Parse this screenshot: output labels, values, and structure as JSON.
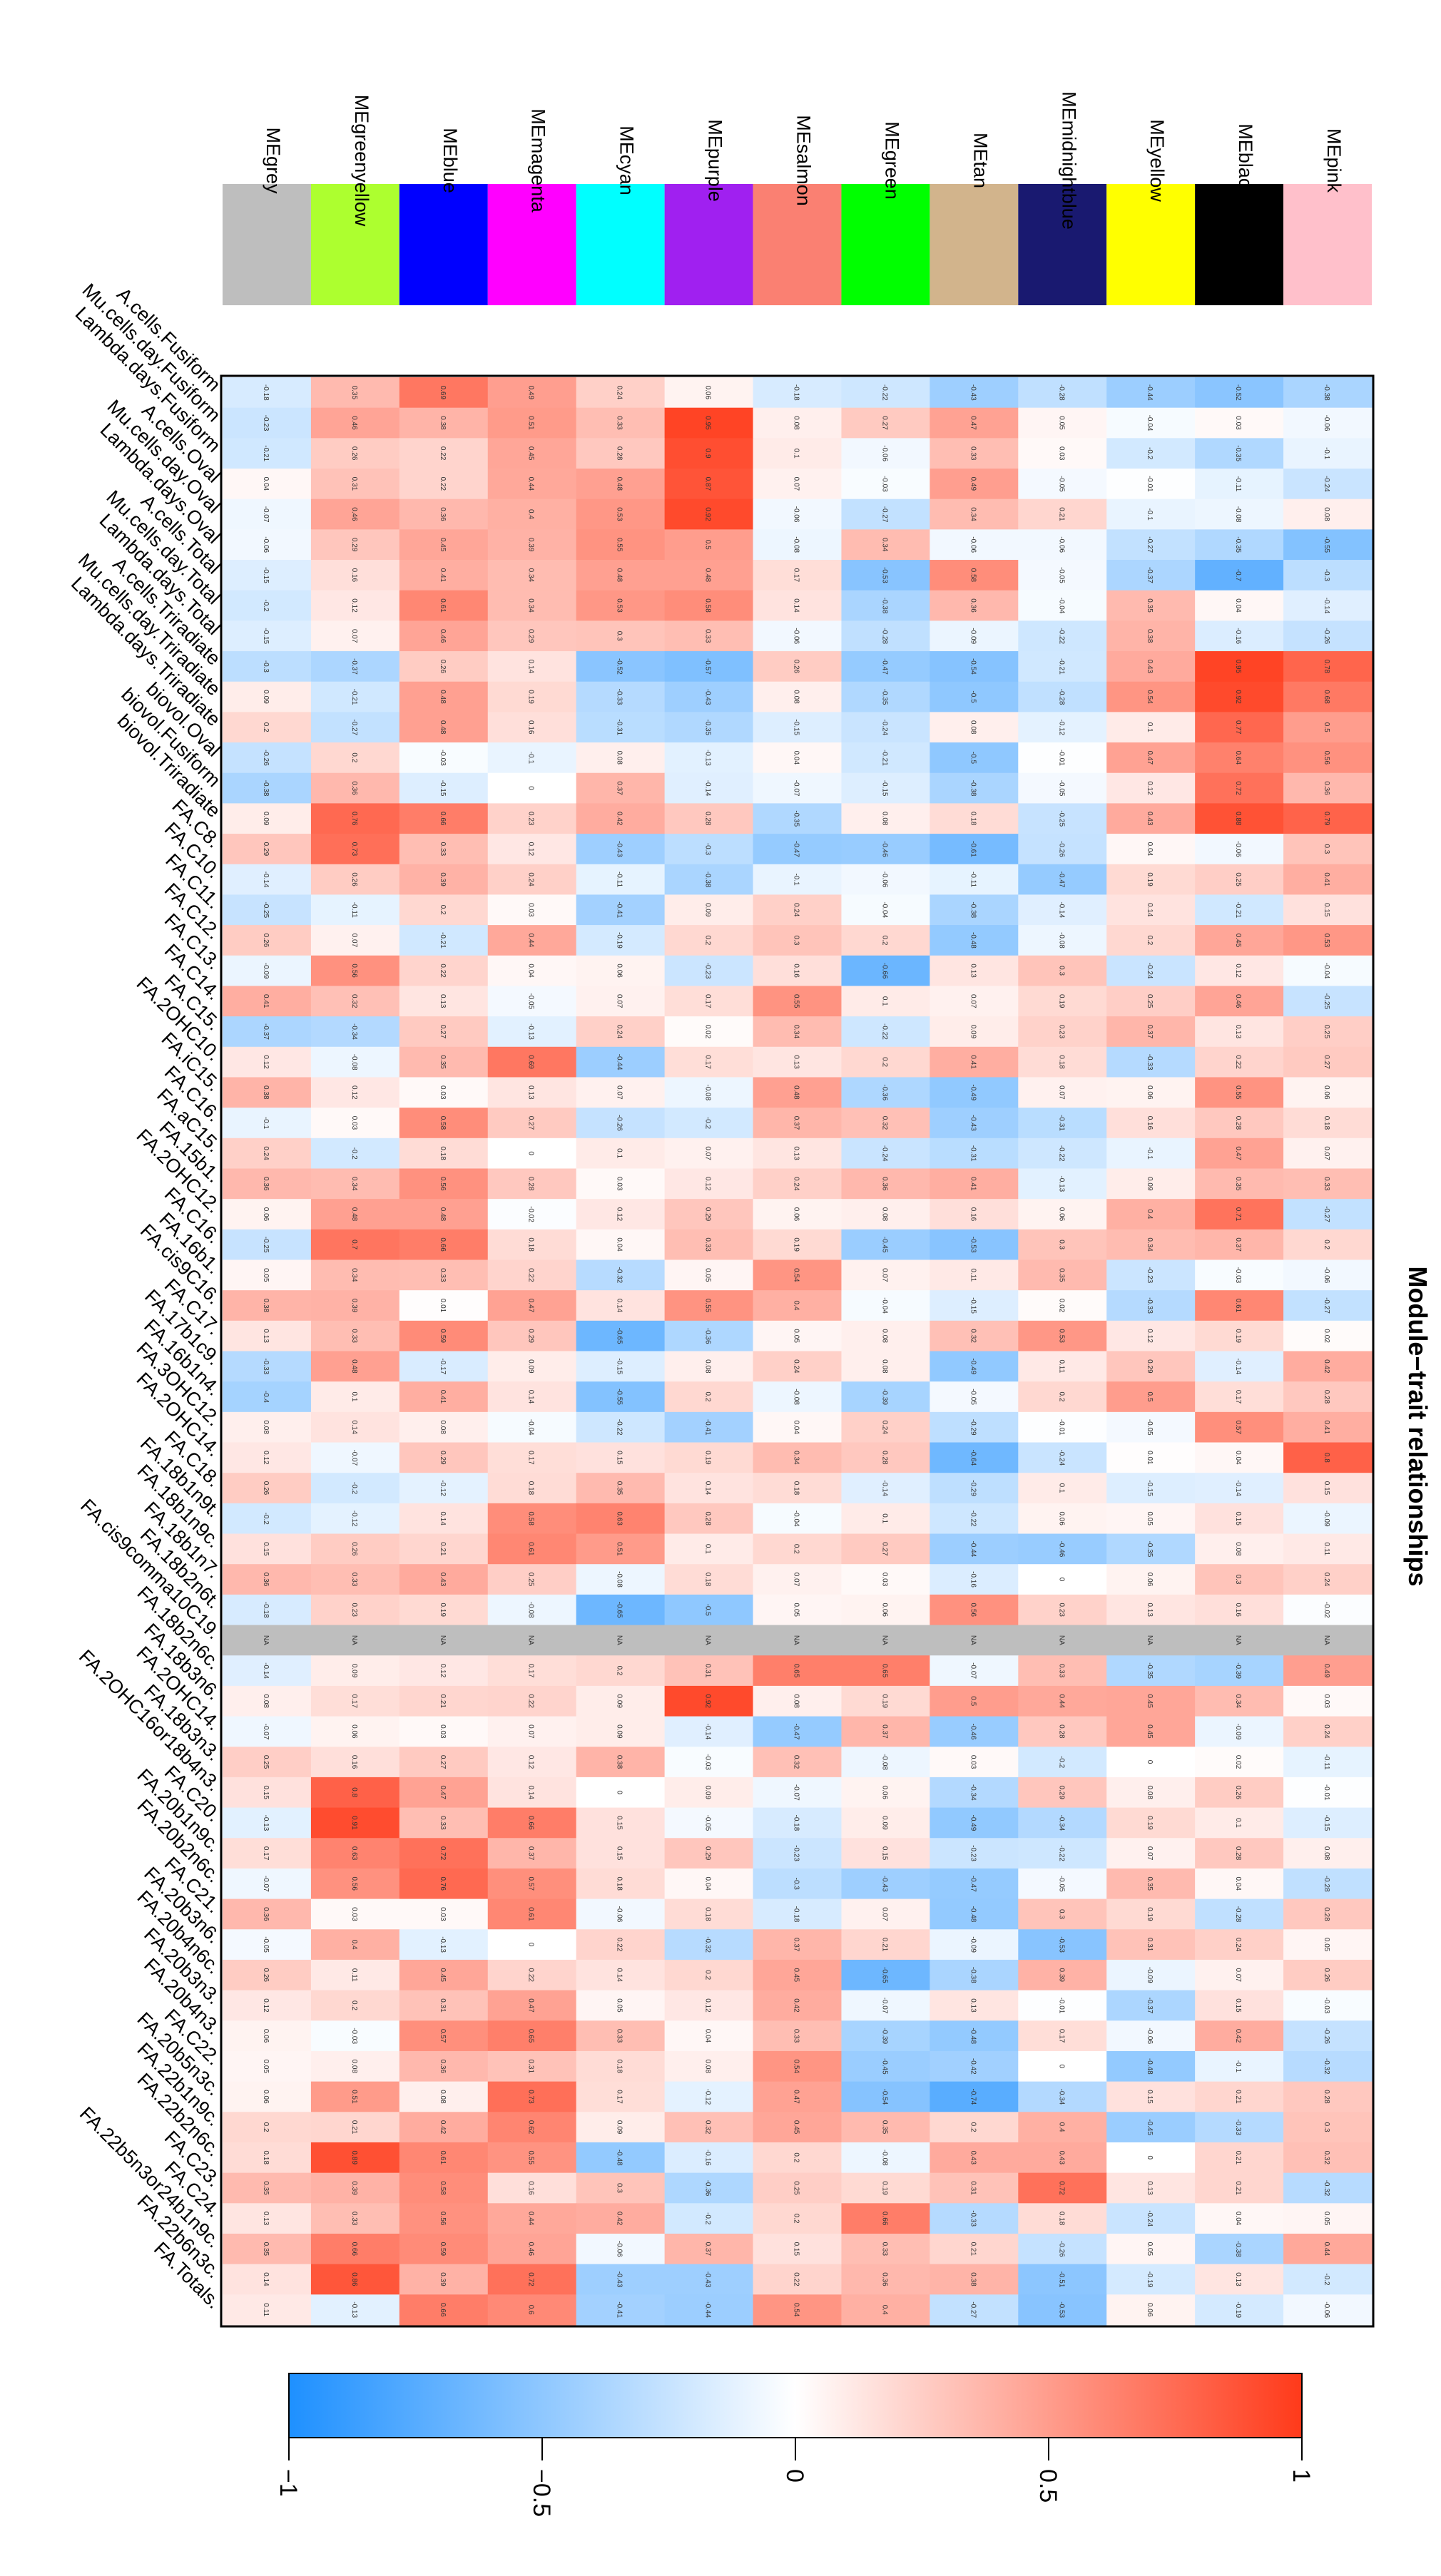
{
  "chart_data": {
    "type": "heatmap",
    "title": "Module−trait relationships",
    "orientation": "rotated 90 degrees clockwise",
    "modules": [
      {
        "name": "MEgrey",
        "color": "#bebebe"
      },
      {
        "name": "MEgreenyellow",
        "color": "#adff2f"
      },
      {
        "name": "MEblue",
        "color": "#0000ff"
      },
      {
        "name": "MEmagenta",
        "color": "#ff00ff"
      },
      {
        "name": "MEcyan",
        "color": "#00ffff"
      },
      {
        "name": "MEpurple",
        "color": "#a020f0"
      },
      {
        "name": "MEsalmon",
        "color": "#fa8072"
      },
      {
        "name": "MEgreen",
        "color": "#00ff00"
      },
      {
        "name": "MEtan",
        "color": "#d2b48c"
      },
      {
        "name": "MEmidnightblue",
        "color": "#191970"
      },
      {
        "name": "MEyellow",
        "color": "#ffff00"
      },
      {
        "name": "MEblack",
        "color": "#000000"
      },
      {
        "name": "MEpink",
        "color": "#ffc0cb"
      }
    ],
    "traits": [
      "A.cells.Fusiform",
      "Mu.cells.day.Fusiform",
      "Lambda.days.Fusiform",
      "A.cells.Oval",
      "Mu.cells.day.Oval",
      "Lambda.days.Oval",
      "A.cells.Total",
      "Mu.cells.day.Total",
      "Lambda.days.Total",
      "A.cells.Triradiate",
      "Mu.cells.day.Triradiate",
      "Lambda.days.Triradiate",
      "biovol.Oval",
      "biovol.Fusiform",
      "biovol.Triradiate",
      "FA.C8.",
      "FA.C10.",
      "FA.C11.",
      "FA.C12.",
      "FA.C13.",
      "FA.C14.",
      "FA.C15.",
      "FA.2OHC10.",
      "FA.iC15.",
      "FA.C16.",
      "FA.aC15.",
      "FA.15b1.",
      "FA.2OHC12.",
      "FA.C16.",
      "FA.16b1.",
      "FA.cis9C16.",
      "FA.C17.",
      "FA.17b1c9.",
      "FA.16b1n4.",
      "FA.3OHC12.",
      "FA.2OHC14.",
      "FA.C18.",
      "FA.18b1n9t.",
      "FA.18b1n9c.",
      "FA.18b1n7.",
      "FA.18b2n6t.",
      "FA.cis9comma10C19.",
      "FA.18b2n6c.",
      "FA.18b3n6.",
      "FA.2OHC14.",
      "FA.18b3n3.",
      "FA.2OHC16or18b4n3.",
      "FA.C20.",
      "FA.20b1n9c.",
      "FA.20b2n6c.",
      "FA.C21.",
      "FA.20b3n6.",
      "FA.20b4n6c.",
      "FA.20b3n3.",
      "FA.20b4n3.",
      "FA.C22.",
      "FA.20b5n3c.",
      "FA.22b1n9c.",
      "FA.22b2n6c.",
      "FA.C23.",
      "FA.C24.",
      "FA.22b5n3or24b1n9c.",
      "FA.22b6n3c.",
      "FA.Totals."
    ],
    "correlations": [
      [
        -0.18,
        -0.23,
        -0.21,
        0.04,
        -0.07,
        -0.06,
        -0.15,
        -0.2,
        -0.15,
        -0.3,
        0.09,
        0.2,
        -0.26,
        -0.38,
        0.09,
        0.29,
        -0.14,
        -0.25,
        0.26,
        -0.09,
        0.41,
        -0.37,
        0.12,
        0.38,
        -0.1,
        0.24,
        0.36,
        0.06,
        -0.25,
        0.05,
        0.38,
        0.13,
        -0.33,
        -0.4,
        0.08,
        0.12,
        0.26,
        -0.2,
        0.15,
        0.36,
        -0.18,
        null,
        -0.14,
        0.08,
        -0.07,
        0.25,
        0.15,
        -0.13,
        0.17,
        -0.07,
        0.36,
        -0.05,
        0.26,
        0.12,
        0.06,
        0.05,
        0.06,
        0.2,
        0.18,
        0.35,
        0.13,
        0.35,
        0.14,
        0.11
      ],
      [
        0.35,
        0.46,
        0.26,
        0.31,
        0.46,
        0.29,
        0.16,
        0.12,
        0.07,
        -0.37,
        -0.21,
        -0.27,
        0.2,
        0.36,
        0.76,
        0.73,
        0.26,
        -0.11,
        0.07,
        0.56,
        0.32,
        -0.34,
        -0.08,
        0.12,
        0.03,
        -0.2,
        0.34,
        0.48,
        0.7,
        0.34,
        0.39,
        0.33,
        0.48,
        0.1,
        0.14,
        -0.07,
        -0.2,
        -0.12,
        0.26,
        0.33,
        0.23,
        null,
        0.09,
        0.17,
        0.06,
        0.16,
        0.8,
        0.91,
        0.63,
        0.56,
        0.03,
        0.4,
        0.11,
        0.2,
        -0.03,
        0.08,
        0.51,
        0.21,
        0.89,
        0.39,
        0.33,
        0.66,
        0.86,
        -0.13
      ],
      [
        0.69,
        0.38,
        0.22,
        0.22,
        0.36,
        0.45,
        0.41,
        0.61,
        0.46,
        0.26,
        0.48,
        0.48,
        -0.03,
        -0.15,
        0.66,
        0.33,
        0.39,
        0.2,
        -0.21,
        0.22,
        0.13,
        0.27,
        0.35,
        0.03,
        0.58,
        0.18,
        0.56,
        0.48,
        0.66,
        0.33,
        0.01,
        0.59,
        -0.17,
        0.41,
        0.08,
        0.29,
        -0.12,
        0.14,
        0.21,
        0.43,
        0.19,
        null,
        0.12,
        0.21,
        0.03,
        0.27,
        0.47,
        0.33,
        0.72,
        0.76,
        0.03,
        -0.13,
        0.45,
        0.31,
        0.57,
        0.36,
        0.08,
        0.42,
        0.61,
        0.58,
        0.56,
        0.59,
        0.39,
        0.66
      ],
      [
        0.49,
        0.51,
        0.45,
        0.44,
        0.4,
        0.39,
        0.34,
        0.34,
        0.29,
        0.14,
        0.19,
        0.16,
        -0.1,
        0.0,
        0.23,
        0.12,
        0.24,
        0.03,
        0.44,
        0.04,
        -0.05,
        -0.13,
        0.69,
        0.13,
        0.27,
        0.0,
        0.28,
        -0.02,
        0.18,
        0.22,
        0.47,
        0.29,
        0.09,
        0.14,
        -0.04,
        0.17,
        0.18,
        0.58,
        0.61,
        0.25,
        -0.08,
        null,
        0.17,
        0.22,
        0.07,
        0.12,
        0.14,
        0.66,
        0.37,
        0.57,
        0.61,
        0.0,
        0.22,
        0.47,
        0.65,
        0.31,
        0.73,
        0.62,
        0.55,
        0.16,
        0.44,
        0.46,
        0.72,
        0.6
      ],
      [
        0.24,
        0.33,
        0.28,
        0.48,
        0.53,
        0.55,
        0.48,
        0.53,
        0.3,
        -0.52,
        -0.33,
        -0.31,
        0.08,
        0.37,
        0.42,
        -0.43,
        -0.11,
        -0.41,
        -0.19,
        0.06,
        0.07,
        0.24,
        -0.44,
        0.07,
        -0.26,
        0.1,
        0.03,
        0.12,
        0.04,
        -0.32,
        0.14,
        -0.65,
        -0.15,
        -0.55,
        -0.22,
        0.15,
        0.35,
        0.63,
        0.51,
        -0.08,
        -0.65,
        null,
        0.2,
        0.09,
        0.09,
        0.38,
        0.0,
        0.15,
        0.15,
        0.18,
        -0.06,
        0.22,
        0.14,
        0.05,
        0.33,
        0.18,
        0.17,
        0.09,
        -0.48,
        0.3,
        0.42,
        -0.06,
        -0.43,
        -0.41
      ],
      [
        0.06,
        0.95,
        0.9,
        0.87,
        0.92,
        0.5,
        0.48,
        0.58,
        0.33,
        -0.57,
        -0.43,
        -0.35,
        -0.13,
        -0.14,
        0.28,
        -0.3,
        -0.38,
        0.09,
        0.2,
        -0.23,
        0.17,
        0.02,
        0.17,
        -0.08,
        -0.2,
        0.07,
        0.12,
        0.29,
        0.33,
        0.05,
        0.55,
        -0.36,
        0.08,
        0.2,
        -0.41,
        0.19,
        0.14,
        0.28,
        0.1,
        0.18,
        -0.5,
        null,
        0.31,
        0.92,
        -0.14,
        -0.03,
        0.09,
        -0.05,
        0.29,
        0.04,
        0.18,
        -0.32,
        0.2,
        0.12,
        0.04,
        0.08,
        -0.12,
        0.32,
        -0.16,
        -0.36,
        -0.2,
        0.37,
        -0.43,
        -0.44
      ],
      [
        -0.18,
        0.08,
        0.1,
        0.07,
        -0.06,
        -0.08,
        0.17,
        0.14,
        -0.06,
        0.26,
        0.08,
        -0.15,
        0.04,
        -0.07,
        -0.35,
        -0.47,
        -0.1,
        0.24,
        0.3,
        0.16,
        0.55,
        0.34,
        0.13,
        0.48,
        0.37,
        0.13,
        0.24,
        0.06,
        0.19,
        0.54,
        0.4,
        0.05,
        0.24,
        -0.08,
        0.04,
        0.34,
        0.18,
        -0.04,
        0.2,
        0.07,
        0.05,
        null,
        0.65,
        0.08,
        -0.47,
        0.32,
        -0.07,
        -0.18,
        -0.23,
        -0.3,
        -0.18,
        0.37,
        0.45,
        0.42,
        0.33,
        0.54,
        0.47,
        0.45,
        0.2,
        0.25,
        0.2,
        0.15,
        0.22,
        0.54
      ],
      [
        -0.22,
        0.27,
        -0.06,
        -0.03,
        -0.27,
        0.34,
        -0.53,
        -0.38,
        -0.28,
        -0.47,
        -0.35,
        -0.24,
        -0.21,
        -0.15,
        0.08,
        -0.46,
        -0.06,
        -0.04,
        0.2,
        -0.66,
        0.1,
        -0.22,
        0.2,
        -0.36,
        0.32,
        -0.24,
        0.36,
        0.08,
        -0.45,
        0.07,
        -0.04,
        0.08,
        0.08,
        -0.39,
        0.24,
        0.28,
        -0.14,
        0.1,
        0.27,
        0.03,
        0.06,
        null,
        0.65,
        0.19,
        0.37,
        -0.08,
        0.06,
        0.09,
        0.15,
        -0.43,
        0.07,
        0.21,
        -0.65,
        -0.07,
        -0.39,
        -0.45,
        -0.54,
        0.35,
        -0.08,
        0.19,
        0.66,
        0.33,
        0.36,
        0.4
      ],
      [
        -0.43,
        0.47,
        0.33,
        0.49,
        0.34,
        -0.06,
        0.58,
        0.36,
        -0.09,
        -0.54,
        -0.5,
        0.08,
        -0.5,
        -0.38,
        0.18,
        -0.61,
        -0.11,
        -0.38,
        -0.48,
        0.13,
        0.07,
        0.09,
        0.41,
        -0.49,
        -0.43,
        -0.31,
        0.41,
        0.16,
        -0.53,
        0.11,
        -0.15,
        0.32,
        -0.49,
        -0.05,
        -0.29,
        -0.64,
        -0.29,
        -0.22,
        -0.44,
        -0.16,
        0.56,
        null,
        -0.07,
        0.5,
        -0.46,
        0.03,
        -0.34,
        -0.49,
        -0.23,
        -0.47,
        -0.48,
        -0.09,
        -0.38,
        0.13,
        -0.48,
        -0.42,
        -0.74,
        0.2,
        0.43,
        0.31,
        -0.33,
        0.21,
        0.38,
        -0.27
      ],
      [
        -0.28,
        0.05,
        0.03,
        -0.05,
        0.21,
        -0.06,
        -0.05,
        -0.04,
        -0.22,
        -0.21,
        -0.28,
        -0.12,
        -0.01,
        -0.05,
        -0.25,
        -0.26,
        -0.47,
        -0.14,
        -0.08,
        0.3,
        0.19,
        0.23,
        0.18,
        0.07,
        -0.31,
        -0.22,
        -0.13,
        0.06,
        0.3,
        0.35,
        0.02,
        0.53,
        0.11,
        0.2,
        -0.01,
        -0.24,
        0.1,
        0.06,
        -0.46,
        0.0,
        0.23,
        null,
        0.33,
        0.44,
        0.28,
        -0.2,
        0.29,
        -0.34,
        -0.22,
        -0.05,
        0.3,
        -0.53,
        0.39,
        -0.01,
        0.17,
        0.0,
        -0.34,
        0.4,
        0.43,
        0.72,
        0.18,
        -0.26,
        -0.51,
        -0.53
      ],
      [
        -0.44,
        -0.04,
        -0.2,
        -0.01,
        -0.1,
        -0.27,
        -0.37,
        0.35,
        0.38,
        0.43,
        0.54,
        0.1,
        0.47,
        0.12,
        0.43,
        0.04,
        0.19,
        0.14,
        0.2,
        -0.24,
        0.25,
        0.37,
        -0.33,
        0.06,
        0.16,
        -0.1,
        0.09,
        0.4,
        0.34,
        -0.23,
        -0.33,
        0.12,
        0.29,
        0.5,
        -0.05,
        0.01,
        -0.15,
        0.05,
        -0.35,
        0.06,
        0.13,
        null,
        -0.35,
        0.45,
        0.45,
        0.0,
        0.08,
        0.19,
        0.07,
        0.35,
        0.19,
        0.31,
        -0.09,
        -0.37,
        -0.06,
        -0.48,
        0.15,
        -0.45,
        0.0,
        0.13,
        -0.24,
        0.05,
        -0.19,
        0.06
      ],
      [
        -0.52,
        0.03,
        -0.35,
        -0.11,
        -0.08,
        -0.35,
        -0.7,
        0.04,
        -0.16,
        0.95,
        0.92,
        0.77,
        0.64,
        0.72,
        0.88,
        -0.06,
        0.25,
        -0.21,
        0.45,
        0.12,
        0.46,
        0.13,
        0.22,
        0.55,
        0.28,
        0.47,
        0.35,
        0.71,
        0.37,
        -0.03,
        0.61,
        0.19,
        -0.14,
        0.17,
        0.57,
        0.04,
        -0.14,
        0.15,
        0.08,
        0.3,
        0.16,
        null,
        -0.39,
        0.34,
        -0.09,
        0.02,
        0.26,
        0.1,
        0.28,
        0.04,
        -0.28,
        0.24,
        0.07,
        0.15,
        0.42,
        -0.1,
        0.21,
        -0.33,
        0.21,
        0.21,
        0.04,
        -0.38,
        0.13,
        -0.19
      ],
      [
        -0.38,
        -0.06,
        -0.1,
        -0.24,
        0.08,
        -0.55,
        -0.3,
        -0.14,
        -0.26,
        0.78,
        0.68,
        0.5,
        0.56,
        0.36,
        0.79,
        0.3,
        0.41,
        0.15,
        0.53,
        -0.04,
        -0.25,
        0.25,
        0.27,
        0.06,
        0.18,
        0.07,
        0.33,
        -0.27,
        0.2,
        -0.06,
        -0.27,
        0.02,
        0.42,
        0.28,
        0.41,
        0.8,
        0.15,
        -0.09,
        0.11,
        0.24,
        -0.02,
        null,
        0.49,
        0.03,
        0.24,
        -0.11,
        -0.01,
        -0.15,
        0.08,
        -0.28,
        0.28,
        0.05,
        0.26,
        -0.03,
        -0.26,
        -0.32,
        0.28,
        0.3,
        0.32,
        -0.32,
        0.05,
        0.44,
        -0.2,
        -0.06
      ]
    ],
    "legend": {
      "type": "colorbar",
      "ticks": [
        "1",
        "0.5",
        "0",
        "−0.5",
        "−1"
      ],
      "range": [
        -1,
        1
      ]
    }
  }
}
